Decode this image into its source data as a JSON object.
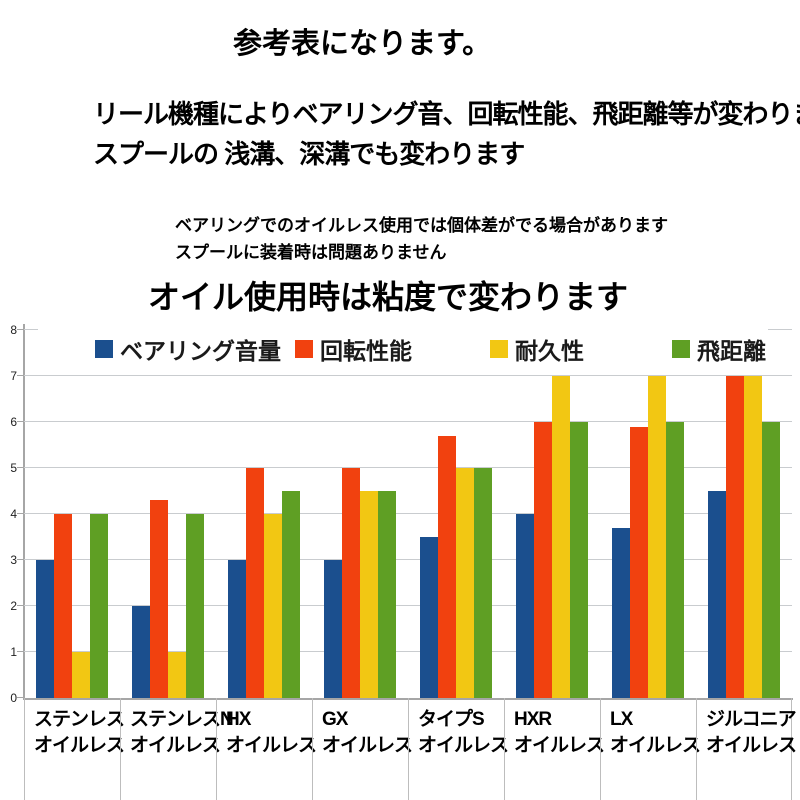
{
  "header": {
    "title": "参考表になります。",
    "description_line1": "リール機種によりベアリング音、回転性能、飛距離等が変わります。",
    "description_line2": "スプールの 浅溝、深溝でも変わります",
    "note_line1": "ベアリングでのオイルレス使用では個体差がでる場合があります",
    "note_line2": "スプールに装着時は問題ありません",
    "subtitle": "オイル使用時は粘度で変わります"
  },
  "chart_data": {
    "type": "bar",
    "title": "",
    "xlabel": "",
    "ylabel": "",
    "ylim": [
      0,
      8
    ],
    "yticks": [
      0,
      1,
      2,
      3,
      4,
      5,
      6,
      7,
      8
    ],
    "grid": true,
    "legend_position": "top",
    "categories": [
      {
        "line1": "ステンレス",
        "line2": "オイルレス"
      },
      {
        "line1": "ステンレスN",
        "line2": "オイルレス"
      },
      {
        "line1": "HX",
        "line2": "オイルレス"
      },
      {
        "line1": "GX",
        "line2": "オイルレス"
      },
      {
        "line1": "タイプS",
        "line2": "オイルレス"
      },
      {
        "line1": "HXR",
        "line2": "オイルレス"
      },
      {
        "line1": "LX",
        "line2": "オイルレス"
      },
      {
        "line1": "ジルコニア",
        "line2": "オイルレス"
      }
    ],
    "series": [
      {
        "name": "ベアリング音量",
        "color": "#1b4f8e",
        "values": [
          3,
          2,
          3,
          3,
          3.5,
          4,
          3.7,
          4.5
        ]
      },
      {
        "name": "回転性能",
        "color": "#f1410f",
        "values": [
          4,
          4.3,
          5,
          5,
          5.7,
          6,
          5.9,
          7
        ]
      },
      {
        "name": "耐久性",
        "color": "#f2c713",
        "values": [
          1,
          1,
          4,
          4.5,
          5,
          7,
          7,
          7
        ]
      },
      {
        "name": "飛距離",
        "color": "#5f9f24",
        "values": [
          4,
          4,
          4.5,
          4.5,
          5,
          6,
          6,
          6
        ]
      }
    ]
  }
}
